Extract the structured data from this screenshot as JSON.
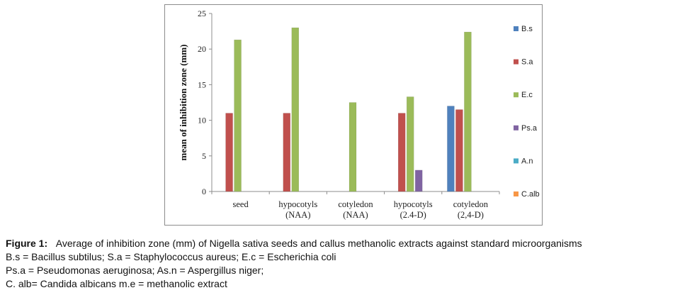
{
  "chart_data": {
    "type": "bar",
    "title": "",
    "xlabel": "",
    "ylabel": "mean of inhibition zone (mm)",
    "ylim": [
      0,
      25
    ],
    "yticks": [
      0,
      5,
      10,
      15,
      20,
      25
    ],
    "categories": [
      [
        "seed"
      ],
      [
        "hypocotyls",
        "(NAA)"
      ],
      [
        "cotyledon",
        "(NAA)"
      ],
      [
        "hypocotyls",
        "(2.4-D)"
      ],
      [
        "cotyledon",
        "(2,4-D)"
      ]
    ],
    "series": [
      {
        "name": "B.s",
        "color": "#4f81bd",
        "values": [
          0,
          0,
          0,
          0,
          12
        ]
      },
      {
        "name": "S.a",
        "color": "#c0504d",
        "values": [
          11,
          11,
          0,
          11,
          11.5
        ]
      },
      {
        "name": "E.c",
        "color": "#9bbb59",
        "values": [
          21.3,
          23,
          12.5,
          13.3,
          22.4
        ]
      },
      {
        "name": "Ps.a",
        "color": "#8064a2",
        "values": [
          0,
          0,
          0,
          3,
          0
        ]
      },
      {
        "name": "A.n",
        "color": "#4bacc6",
        "values": [
          0,
          0,
          0,
          0,
          0
        ]
      },
      {
        "name": "C.alb",
        "color": "#f79646",
        "values": [
          0,
          0,
          0,
          0,
          0
        ]
      }
    ],
    "legend_position": "right",
    "grid": false
  },
  "caption": {
    "figure_label": "Figure 1:",
    "figure_text": "Average of inhibition zone (mm) of Nigella sativa seeds and callus methanolic extracts against standard microorganisms",
    "line2": "B.s = Bacillus subtilus; S.a = Staphylococcus aureus; E.c = Escherichia coli",
    "line3": "Ps.a = Pseudomonas aeruginosa; As.n = Aspergillus niger;",
    "line4": "C. alb= Candida albicans m.e = methanolic extract"
  }
}
